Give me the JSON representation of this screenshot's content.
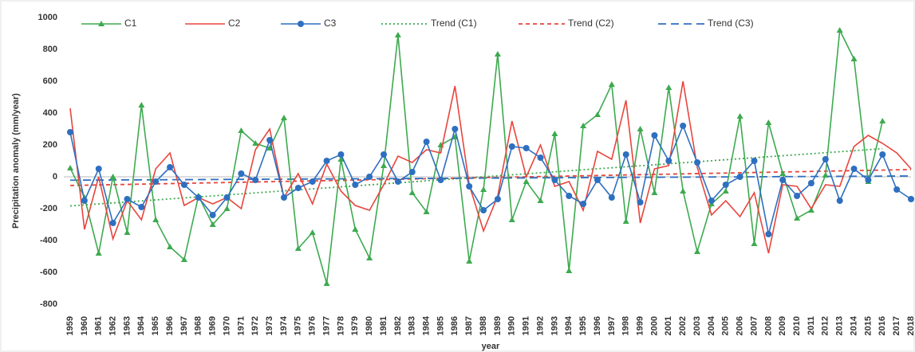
{
  "chart_data": {
    "type": "line",
    "ylabel": "Precipitation anomaly (mm/year)",
    "xlabel": "year",
    "categories": [
      "1959",
      "1960",
      "1961",
      "1962",
      "1963",
      "1964",
      "1965",
      "1966",
      "1967",
      "1968",
      "1969",
      "1970",
      "1971",
      "1972",
      "1973",
      "1974",
      "1975",
      "1976",
      "1977",
      "1978",
      "1979",
      "1980",
      "1981",
      "1982",
      "1983",
      "1984",
      "1985",
      "1986",
      "1987",
      "1988",
      "1989",
      "1990",
      "1991",
      "1992",
      "1993",
      "1994",
      "1995",
      "1996",
      "1997",
      "1998",
      "1999",
      "2000",
      "2001",
      "2002",
      "2003",
      "2004",
      "2005",
      "2006",
      "2007",
      "2008",
      "2009",
      "2010",
      "2011",
      "2012",
      "2013",
      "2014",
      "2015",
      "2016",
      "2017",
      "2018"
    ],
    "series": [
      {
        "name": "C1",
        "color": "#3daa4f",
        "marker": "triangle",
        "values": [
          55,
          -130,
          -480,
          0,
          -350,
          450,
          -270,
          -440,
          -520,
          -120,
          -300,
          -200,
          290,
          210,
          180,
          370,
          -450,
          -350,
          -670,
          110,
          -330,
          -510,
          70,
          890,
          -100,
          -220,
          200,
          250,
          -530,
          -80,
          770,
          -270,
          -30,
          -150,
          270,
          -590,
          320,
          390,
          580,
          -280,
          300,
          -100,
          560,
          -90,
          -470,
          -170,
          -90,
          380,
          -420,
          340,
          20,
          -260,
          -210,
          10,
          920,
          740,
          -30,
          350,
          null,
          null
        ]
      },
      {
        "name": "C2",
        "color": "#e8453c",
        "marker": "none",
        "values": [
          430,
          -330,
          0,
          -390,
          -150,
          -270,
          50,
          150,
          -180,
          -130,
          -170,
          -130,
          -200,
          170,
          300,
          -130,
          20,
          -170,
          80,
          -90,
          -180,
          -210,
          -50,
          130,
          90,
          170,
          150,
          570,
          -50,
          -340,
          -120,
          350,
          0,
          200,
          -60,
          -30,
          -210,
          160,
          110,
          480,
          -290,
          50,
          70,
          600,
          60,
          -240,
          -150,
          -250,
          -100,
          -480,
          -50,
          -60,
          -200,
          -50,
          -60,
          190,
          260,
          210,
          150,
          50
        ]
      },
      {
        "name": "C3",
        "color": "#2e6fc0",
        "marker": "circle",
        "values": [
          280,
          -150,
          50,
          -290,
          -140,
          -190,
          -30,
          60,
          -50,
          -130,
          -240,
          -130,
          20,
          -20,
          230,
          -130,
          -70,
          -30,
          100,
          140,
          -50,
          0,
          140,
          -30,
          30,
          220,
          -20,
          300,
          -60,
          -210,
          -140,
          190,
          180,
          120,
          -20,
          -120,
          -170,
          -20,
          -130,
          140,
          -160,
          260,
          100,
          320,
          90,
          -150,
          -50,
          0,
          100,
          -360,
          -20,
          -120,
          -40,
          110,
          -150,
          50,
          -20,
          140,
          -80,
          -140
        ]
      }
    ],
    "trendlines": [
      {
        "name": "Trend (C1)",
        "color": "#3daa4f",
        "dash": "2,3"
      },
      {
        "name": "Trend  (C2)",
        "color": "#e8453c",
        "dash": "5,4"
      },
      {
        "name": "Trend (C3)",
        "color": "#2e6fc0",
        "dash": "10,6"
      }
    ],
    "ylim": [
      -800,
      1000
    ],
    "yticks": [
      -800,
      -600,
      -400,
      -200,
      0,
      200,
      400,
      600,
      800,
      1000
    ],
    "grid": false
  }
}
